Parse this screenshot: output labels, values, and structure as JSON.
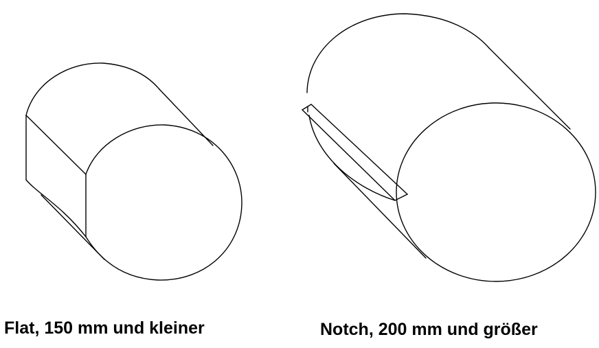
{
  "figures": [
    {
      "id": "flat",
      "caption": "Flat, 150 mm und kleiner"
    },
    {
      "id": "notch",
      "caption": "Notch, 200 mm und größer"
    }
  ],
  "colors": {
    "line": "#000000",
    "background": "#ffffff"
  }
}
